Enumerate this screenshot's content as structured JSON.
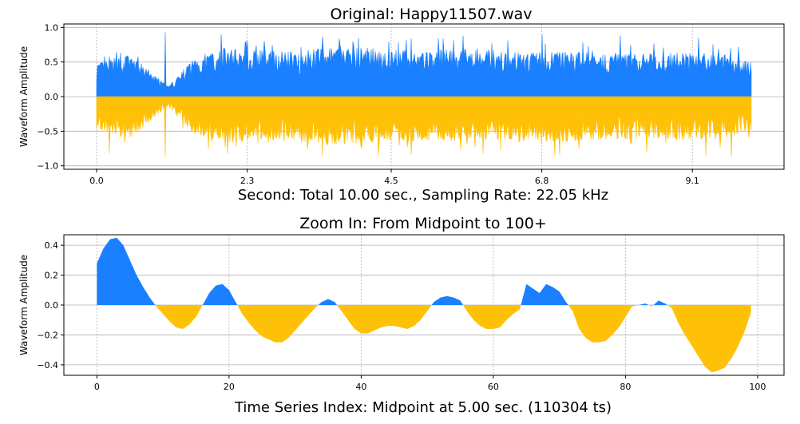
{
  "chart_data": [
    {
      "type": "area",
      "title": "Original: Happy11507.wav",
      "xlabel": "Second: Total 10.00 sec., Sampling Rate: 22.05 kHz",
      "ylabel": "Waveform Amplitude",
      "xlim": [
        -0.5,
        10.5
      ],
      "ylim": [
        -1.05,
        1.05
      ],
      "x_ticks": [
        0.0,
        2.3,
        4.5,
        6.8,
        9.1
      ],
      "x_tick_labels": [
        "0.0",
        "2.3",
        "4.5",
        "6.8",
        "9.1"
      ],
      "y_ticks": [
        -1.0,
        -0.5,
        0.0,
        0.5,
        1.0
      ],
      "y_tick_labels": [
        "−1.0",
        "−0.5",
        "0.0",
        "0.5",
        "1.0"
      ],
      "grid": true,
      "colors": {
        "positive": "#1a80ff",
        "negative": "#ffc107"
      },
      "envelope": {
        "t": [
          0.0,
          0.5,
          1.0,
          1.1,
          1.5,
          2.0,
          2.5,
          3.0,
          3.5,
          4.0,
          4.5,
          5.0,
          5.5,
          6.0,
          6.5,
          7.0,
          7.5,
          8.0,
          8.5,
          9.0,
          9.5,
          10.0
        ],
        "pos": [
          0.48,
          0.62,
          0.22,
          0.15,
          0.58,
          0.72,
          0.68,
          0.66,
          0.7,
          0.72,
          0.68,
          0.66,
          0.7,
          0.68,
          0.64,
          0.66,
          0.64,
          0.62,
          0.63,
          0.64,
          0.62,
          0.5
        ],
        "neg": [
          -0.48,
          -0.62,
          -0.22,
          -0.15,
          -0.58,
          -0.66,
          -0.64,
          -0.66,
          -0.7,
          -0.68,
          -0.66,
          -0.64,
          -0.66,
          -0.62,
          -0.66,
          -0.68,
          -0.64,
          -0.62,
          -0.6,
          -0.64,
          -0.62,
          -0.5
        ],
        "peaks_pos": [
          [
            0.2,
            0.58
          ],
          [
            1.05,
            0.93
          ],
          [
            1.9,
            0.9
          ],
          [
            2.3,
            0.8
          ],
          [
            3.45,
            0.87
          ],
          [
            4.0,
            0.85
          ],
          [
            4.8,
            0.84
          ],
          [
            5.6,
            0.88
          ],
          [
            6.8,
            0.9
          ],
          [
            8.0,
            0.88
          ],
          [
            9.2,
            0.85
          ],
          [
            9.8,
            0.72
          ]
        ],
        "peaks_neg": [
          [
            0.2,
            -0.82
          ],
          [
            1.05,
            -0.88
          ],
          [
            2.0,
            -0.83
          ],
          [
            3.45,
            -0.86
          ],
          [
            4.3,
            -0.85
          ],
          [
            4.8,
            -0.84
          ],
          [
            5.9,
            -0.82
          ],
          [
            7.0,
            -0.86
          ],
          [
            8.4,
            -0.8
          ],
          [
            9.3,
            -0.85
          ],
          [
            9.7,
            -0.88
          ]
        ]
      }
    },
    {
      "type": "area",
      "title": "Zoom In: From Midpoint to 100+",
      "xlabel": "Time Series Index: Midpoint at 5.00 sec. (110304 ts)",
      "ylabel": "Waveform Amplitude",
      "xlim": [
        -5,
        104
      ],
      "ylim": [
        -0.47,
        0.47
      ],
      "x_ticks": [
        0,
        20,
        40,
        60,
        80,
        100
      ],
      "x_tick_labels": [
        "0",
        "20",
        "40",
        "60",
        "80",
        "100"
      ],
      "y_ticks": [
        -0.4,
        -0.2,
        0.0,
        0.2,
        0.4
      ],
      "y_tick_labels": [
        "−0.4",
        "−0.2",
        "0.0",
        "0.2",
        "0.4"
      ],
      "grid": true,
      "colors": {
        "positive": "#1a80ff",
        "negative": "#ffc107"
      },
      "x": [
        0,
        1,
        2,
        3,
        4,
        5,
        6,
        7,
        8,
        9,
        10,
        11,
        12,
        13,
        14,
        15,
        16,
        17,
        18,
        19,
        20,
        21,
        22,
        23,
        24,
        25,
        26,
        27,
        28,
        29,
        30,
        31,
        32,
        33,
        34,
        35,
        36,
        37,
        38,
        39,
        40,
        41,
        42,
        43,
        44,
        45,
        46,
        47,
        48,
        49,
        50,
        51,
        52,
        53,
        54,
        55,
        56,
        57,
        58,
        59,
        60,
        61,
        62,
        63,
        64,
        65,
        66,
        67,
        68,
        69,
        70,
        71,
        72,
        73,
        74,
        75,
        76,
        77,
        78,
        79,
        80,
        81,
        82,
        83,
        84,
        85,
        86,
        87,
        88,
        89,
        90,
        91,
        92,
        93,
        94,
        95,
        96,
        97,
        98,
        99
      ],
      "y": [
        0.28,
        0.38,
        0.44,
        0.45,
        0.4,
        0.3,
        0.2,
        0.12,
        0.05,
        -0.01,
        -0.06,
        -0.11,
        -0.15,
        -0.16,
        -0.13,
        -0.08,
        0.0,
        0.08,
        0.13,
        0.14,
        0.1,
        0.02,
        -0.06,
        -0.12,
        -0.17,
        -0.21,
        -0.23,
        -0.25,
        -0.25,
        -0.22,
        -0.17,
        -0.12,
        -0.07,
        -0.02,
        0.02,
        0.04,
        0.02,
        -0.04,
        -0.1,
        -0.16,
        -0.19,
        -0.19,
        -0.17,
        -0.15,
        -0.14,
        -0.14,
        -0.15,
        -0.16,
        -0.14,
        -0.1,
        -0.04,
        0.02,
        0.05,
        0.06,
        0.05,
        0.03,
        -0.04,
        -0.1,
        -0.14,
        -0.16,
        -0.16,
        -0.15,
        -0.1,
        -0.06,
        -0.03,
        0.14,
        0.11,
        0.08,
        0.14,
        0.12,
        0.09,
        0.02,
        -0.04,
        -0.16,
        -0.22,
        -0.25,
        -0.25,
        -0.24,
        -0.2,
        -0.15,
        -0.08,
        -0.01,
        0.0,
        0.01,
        -0.01,
        0.03,
        0.01,
        -0.02,
        -0.12,
        -0.2,
        -0.27,
        -0.34,
        -0.41,
        -0.45,
        -0.44,
        -0.42,
        -0.36,
        -0.28,
        -0.18,
        -0.05
      ]
    }
  ]
}
